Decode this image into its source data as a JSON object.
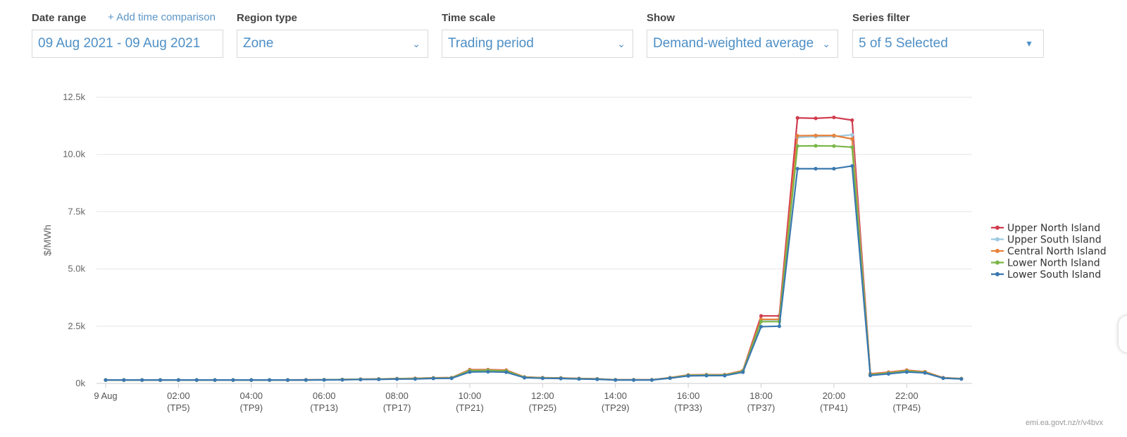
{
  "controls": {
    "date_range": {
      "label": "Date range",
      "link": "+ Add time comparison",
      "value": "09 Aug 2021 - 09 Aug 2021"
    },
    "region_type": {
      "label": "Region type",
      "value": "Zone"
    },
    "time_scale": {
      "label": "Time scale",
      "value": "Trading period"
    },
    "show": {
      "label": "Show",
      "value": "Demand-weighted average"
    },
    "series_filter": {
      "label": "Series filter",
      "value": "5 of 5 Selected"
    }
  },
  "watermark": "emi.ea.govt.nz/r/v4bvx",
  "chart_data": {
    "type": "line",
    "title": "",
    "xlabel": "",
    "ylabel": "$/MWh",
    "ylim": [
      0,
      12500
    ],
    "yticks": [
      "0k",
      "2.5k",
      "5.0k",
      "7.5k",
      "10.0k",
      "12.5k"
    ],
    "xtick_labels": [
      {
        "tp": 1,
        "line1": "9 Aug",
        "line2": ""
      },
      {
        "tp": 5,
        "line1": "02:00",
        "line2": "(TP5)"
      },
      {
        "tp": 9,
        "line1": "04:00",
        "line2": "(TP9)"
      },
      {
        "tp": 13,
        "line1": "06:00",
        "line2": "(TP13)"
      },
      {
        "tp": 17,
        "line1": "08:00",
        "line2": "(TP17)"
      },
      {
        "tp": 21,
        "line1": "10:00",
        "line2": "(TP21)"
      },
      {
        "tp": 25,
        "line1": "12:00",
        "line2": "(TP25)"
      },
      {
        "tp": 29,
        "line1": "14:00",
        "line2": "(TP29)"
      },
      {
        "tp": 33,
        "line1": "16:00",
        "line2": "(TP33)"
      },
      {
        "tp": 37,
        "line1": "18:00",
        "line2": "(TP37)"
      },
      {
        "tp": 41,
        "line1": "20:00",
        "line2": "(TP41)"
      },
      {
        "tp": 45,
        "line1": "22:00",
        "line2": "(TP45)"
      }
    ],
    "grid": true,
    "legend_position": "right",
    "x": [
      1,
      2,
      3,
      4,
      5,
      6,
      7,
      8,
      9,
      10,
      11,
      12,
      13,
      14,
      15,
      16,
      17,
      18,
      19,
      20,
      21,
      22,
      23,
      24,
      25,
      26,
      27,
      28,
      29,
      30,
      31,
      32,
      33,
      34,
      35,
      36,
      37,
      38,
      39,
      40,
      41,
      42,
      43,
      44,
      45,
      46,
      47,
      48
    ],
    "series": [
      {
        "name": "Upper North Island",
        "color": "#d13c4e",
        "values": [
          150,
          150,
          150,
          150,
          150,
          150,
          150,
          150,
          150,
          150,
          150,
          155,
          160,
          170,
          185,
          195,
          210,
          220,
          245,
          250,
          600,
          600,
          580,
          280,
          250,
          240,
          215,
          200,
          160,
          160,
          160,
          250,
          370,
          380,
          380,
          560,
          2950,
          2950,
          11600,
          11580,
          11620,
          11500,
          420,
          490,
          580,
          510,
          250,
          210
        ]
      },
      {
        "name": "Upper South Island",
        "color": "#9ecae1",
        "values": [
          150,
          150,
          150,
          150,
          150,
          150,
          150,
          150,
          150,
          150,
          150,
          152,
          158,
          165,
          178,
          185,
          200,
          205,
          230,
          235,
          540,
          550,
          530,
          265,
          235,
          225,
          205,
          190,
          155,
          155,
          155,
          240,
          350,
          360,
          360,
          520,
          2780,
          2780,
          10750,
          10780,
          10790,
          10860,
          390,
          460,
          550,
          490,
          240,
          205
        ]
      },
      {
        "name": "Central North Island",
        "color": "#e8803a",
        "values": [
          150,
          150,
          150,
          150,
          150,
          150,
          150,
          150,
          150,
          150,
          150,
          155,
          160,
          170,
          185,
          195,
          210,
          220,
          245,
          250,
          590,
          590,
          570,
          275,
          245,
          235,
          212,
          198,
          158,
          158,
          158,
          248,
          365,
          375,
          375,
          550,
          2800,
          2800,
          10820,
          10830,
          10830,
          10680,
          410,
          480,
          570,
          505,
          248,
          208
        ]
      },
      {
        "name": "Lower North Island",
        "color": "#7ab648",
        "values": [
          150,
          150,
          150,
          150,
          150,
          150,
          150,
          150,
          150,
          150,
          150,
          152,
          157,
          165,
          178,
          186,
          200,
          207,
          232,
          238,
          560,
          570,
          545,
          265,
          238,
          228,
          206,
          192,
          155,
          155,
          155,
          240,
          350,
          362,
          362,
          525,
          2700,
          2700,
          10370,
          10380,
          10370,
          10320,
          380,
          450,
          540,
          480,
          235,
          200
        ]
      },
      {
        "name": "Lower South Island",
        "color": "#3a78b0",
        "values": [
          150,
          150,
          150,
          150,
          150,
          150,
          150,
          150,
          150,
          150,
          150,
          150,
          155,
          160,
          172,
          178,
          190,
          195,
          220,
          225,
          500,
          510,
          490,
          250,
          225,
          215,
          195,
          180,
          150,
          150,
          150,
          230,
          330,
          340,
          340,
          490,
          2480,
          2500,
          9380,
          9380,
          9380,
          9500,
          350,
          420,
          500,
          460,
          230,
          195
        ]
      }
    ]
  }
}
